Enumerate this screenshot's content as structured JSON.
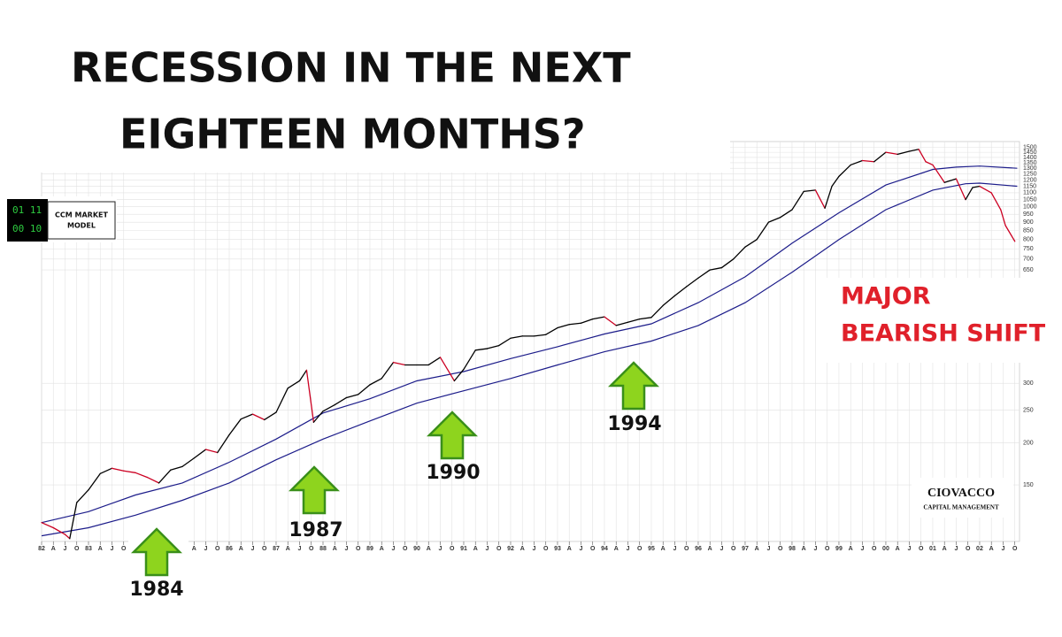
{
  "chart_data": {
    "type": "line",
    "title_lines": [
      "RECESSION IN THE NEXT",
      "EIGHTEEN MONTHS?"
    ],
    "log_scale": true,
    "grid": true,
    "xlim": [
      1982,
      2002.85
    ],
    "ylim": [
      102,
      1560
    ],
    "yticks": [
      150,
      200,
      250,
      300,
      650,
      700,
      750,
      800,
      850,
      900,
      950,
      1000,
      1050,
      1100,
      1150,
      1200,
      1250,
      1300,
      1350,
      1400,
      1450,
      1500
    ],
    "xticks": [
      {
        "value": 1982,
        "label": "82"
      },
      {
        "value": 1982.25,
        "label": "A"
      },
      {
        "value": 1982.5,
        "label": "J"
      },
      {
        "value": 1982.75,
        "label": "O"
      },
      {
        "value": 1983,
        "label": "83"
      },
      {
        "value": 1983.25,
        "label": "A"
      },
      {
        "value": 1983.5,
        "label": "J"
      },
      {
        "value": 1983.75,
        "label": "O"
      },
      {
        "value": 1985.25,
        "label": "A"
      },
      {
        "value": 1985.5,
        "label": "J"
      },
      {
        "value": 1985.75,
        "label": "O"
      },
      {
        "value": 1986,
        "label": "86"
      },
      {
        "value": 1986.25,
        "label": "A"
      },
      {
        "value": 1986.5,
        "label": "J"
      },
      {
        "value": 1986.75,
        "label": "O"
      },
      {
        "value": 1987,
        "label": "87"
      },
      {
        "value": 1987.25,
        "label": "A"
      },
      {
        "value": 1987.5,
        "label": "J"
      },
      {
        "value": 1987.75,
        "label": "O"
      },
      {
        "value": 1988,
        "label": "88"
      },
      {
        "value": 1988.25,
        "label": "A"
      },
      {
        "value": 1988.5,
        "label": "J"
      },
      {
        "value": 1988.75,
        "label": "O"
      },
      {
        "value": 1989,
        "label": "89"
      },
      {
        "value": 1989.25,
        "label": "A"
      },
      {
        "value": 1989.5,
        "label": "J"
      },
      {
        "value": 1989.75,
        "label": "O"
      },
      {
        "value": 1990,
        "label": "90"
      },
      {
        "value": 1990.25,
        "label": "A"
      },
      {
        "value": 1990.5,
        "label": "J"
      },
      {
        "value": 1990.75,
        "label": "O"
      },
      {
        "value": 1991,
        "label": "91"
      },
      {
        "value": 1991.25,
        "label": "A"
      },
      {
        "value": 1991.5,
        "label": "J"
      },
      {
        "value": 1991.75,
        "label": "O"
      },
      {
        "value": 1992,
        "label": "92"
      },
      {
        "value": 1992.25,
        "label": "A"
      },
      {
        "value": 1992.5,
        "label": "J"
      },
      {
        "value": 1992.75,
        "label": "O"
      },
      {
        "value": 1993,
        "label": "93"
      },
      {
        "value": 1993.25,
        "label": "A"
      },
      {
        "value": 1993.5,
        "label": "J"
      },
      {
        "value": 1993.75,
        "label": "O"
      },
      {
        "value": 1994,
        "label": "94"
      },
      {
        "value": 1994.25,
        "label": "A"
      },
      {
        "value": 1994.5,
        "label": "J"
      },
      {
        "value": 1994.75,
        "label": "O"
      },
      {
        "value": 1995,
        "label": "95"
      },
      {
        "value": 1995.25,
        "label": "A"
      },
      {
        "value": 1995.5,
        "label": "J"
      },
      {
        "value": 1995.75,
        "label": "O"
      },
      {
        "value": 1996,
        "label": "96"
      },
      {
        "value": 1996.25,
        "label": "A"
      },
      {
        "value": 1996.5,
        "label": "J"
      },
      {
        "value": 1996.75,
        "label": "O"
      },
      {
        "value": 1997,
        "label": "97"
      },
      {
        "value": 1997.25,
        "label": "A"
      },
      {
        "value": 1997.5,
        "label": "J"
      },
      {
        "value": 1997.75,
        "label": "O"
      },
      {
        "value": 1998,
        "label": "98"
      },
      {
        "value": 1998.25,
        "label": "A"
      },
      {
        "value": 1998.5,
        "label": "J"
      },
      {
        "value": 1998.75,
        "label": "O"
      },
      {
        "value": 1999,
        "label": "99"
      },
      {
        "value": 1999.25,
        "label": "A"
      },
      {
        "value": 1999.5,
        "label": "J"
      },
      {
        "value": 1999.75,
        "label": "O"
      },
      {
        "value": 2000,
        "label": "00"
      },
      {
        "value": 2000.25,
        "label": "A"
      },
      {
        "value": 2000.5,
        "label": "J"
      },
      {
        "value": 2000.75,
        "label": "O"
      },
      {
        "value": 2001,
        "label": "01"
      },
      {
        "value": 2001.25,
        "label": "A"
      },
      {
        "value": 2001.5,
        "label": "J"
      },
      {
        "value": 2001.75,
        "label": "O"
      },
      {
        "value": 2002,
        "label": "02"
      },
      {
        "value": 2002.25,
        "label": "A"
      },
      {
        "value": 2002.5,
        "label": "J"
      },
      {
        "value": 2002.75,
        "label": "O"
      }
    ],
    "up_color": "#000000",
    "down_color": "#cc0022",
    "price": {
      "x": [
        1982,
        1982.25,
        1982.5,
        1982.6,
        1982.75,
        1983,
        1983.25,
        1983.5,
        1983.75,
        1984,
        1984.25,
        1984.5,
        1984.75,
        1985,
        1985.25,
        1985.5,
        1985.75,
        1986,
        1986.25,
        1986.5,
        1986.75,
        1987,
        1987.25,
        1987.5,
        1987.65,
        1987.8,
        1988,
        1988.25,
        1988.5,
        1988.75,
        1989,
        1989.25,
        1989.5,
        1989.75,
        1990,
        1990.25,
        1990.5,
        1990.8,
        1991,
        1991.25,
        1991.5,
        1991.75,
        1992,
        1992.25,
        1992.5,
        1992.75,
        1993,
        1993.25,
        1993.5,
        1993.75,
        1994,
        1994.25,
        1994.5,
        1994.75,
        1995,
        1995.25,
        1995.5,
        1995.75,
        1996,
        1996.25,
        1996.5,
        1996.75,
        1997,
        1997.25,
        1997.5,
        1997.75,
        1998,
        1998.25,
        1998.5,
        1998.7,
        1998.85,
        1999,
        1999.25,
        1999.5,
        1999.75,
        2000,
        2000.25,
        2000.5,
        2000.7,
        2000.85,
        2001,
        2001.25,
        2001.5,
        2001.7,
        2001.85,
        2002,
        2002.25,
        2002.45,
        2002.55,
        2002.75
      ],
      "values": [
        116,
        112,
        107,
        104,
        133,
        145,
        162,
        168,
        165,
        163,
        158,
        152,
        166,
        170,
        180,
        191,
        187,
        211,
        235,
        243,
        234,
        246,
        290,
        305,
        328,
        230,
        248,
        259,
        272,
        278,
        297,
        310,
        346,
        340,
        340,
        340,
        358,
        305,
        330,
        376,
        380,
        388,
        408,
        414,
        414,
        418,
        438,
        448,
        452,
        465,
        472,
        445,
        455,
        465,
        470,
        510,
        545,
        580,
        615,
        650,
        660,
        700,
        760,
        800,
        900,
        930,
        980,
        1110,
        1120,
        990,
        1150,
        1230,
        1330,
        1370,
        1360,
        1450,
        1430,
        1460,
        1480,
        1360,
        1330,
        1180,
        1210,
        1050,
        1140,
        1150,
        1100,
        980,
        880,
        790
      ]
    },
    "series": [
      {
        "color": "#1c1c8a",
        "x": [
          1982,
          1983,
          1984,
          1985,
          1986,
          1987,
          1988,
          1989,
          1990,
          1991,
          1992,
          1993,
          1994,
          1995,
          1996,
          1997,
          1998,
          1999,
          2000,
          2001,
          2001.5,
          2002,
          2002.8
        ],
        "values": [
          116,
          125,
          140,
          152,
          175,
          205,
          245,
          270,
          305,
          325,
          355,
          385,
          420,
          450,
          520,
          620,
          780,
          960,
          1160,
          1290,
          1310,
          1320,
          1300
        ]
      },
      {
        "color": "#1c1c8a",
        "x": [
          1982,
          1983,
          1984,
          1985,
          1986,
          1987,
          1988,
          1989,
          1990,
          1991,
          1992,
          1993,
          1994,
          1995,
          1996,
          1997,
          1998,
          1999,
          2000,
          2001,
          2001.7,
          2002,
          2002.8
        ],
        "values": [
          106,
          112,
          122,
          135,
          152,
          178,
          205,
          232,
          262,
          285,
          310,
          340,
          372,
          400,
          445,
          520,
          640,
          800,
          980,
          1120,
          1170,
          1175,
          1150
        ]
      }
    ],
    "annotations": [
      "1984",
      "1987",
      "1990",
      "1994"
    ],
    "bearish_lines": [
      "MAJOR",
      "BEARISH SHIFT"
    ],
    "model_digits": [
      "01 11",
      "00 10"
    ],
    "model_lines": [
      "CCM MARKET",
      "MODEL"
    ],
    "logo_lines": [
      "CIOVACCO",
      "CAPITAL MANAGEMENT"
    ]
  }
}
